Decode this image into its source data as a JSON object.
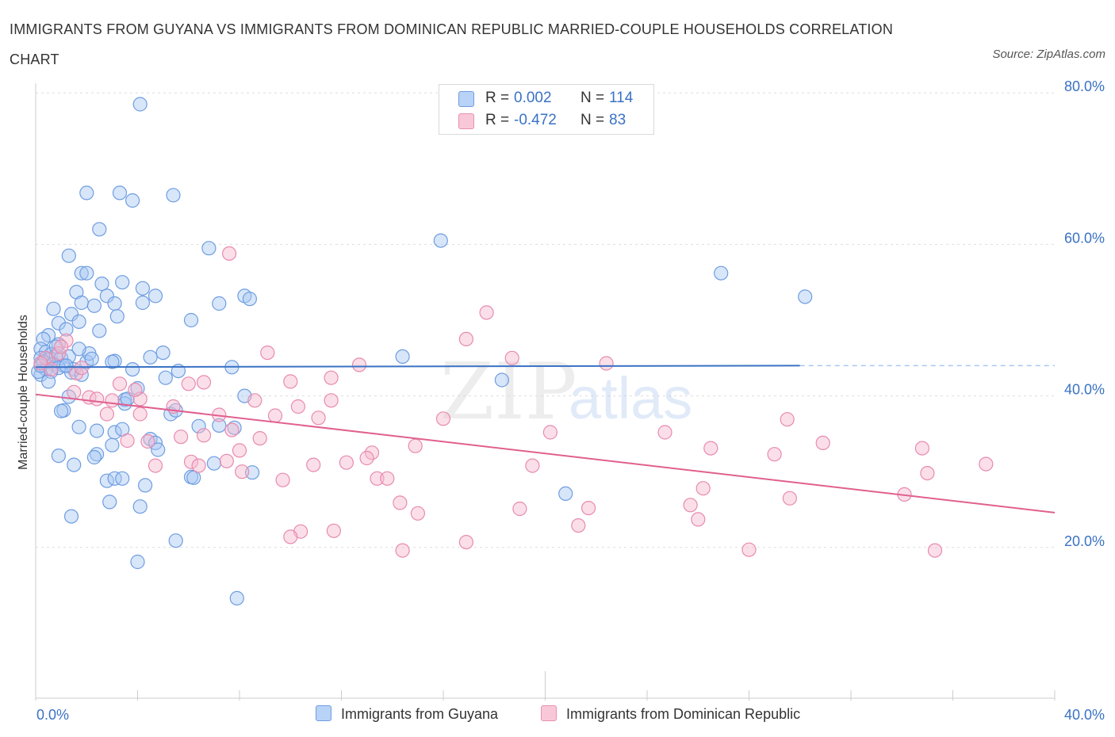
{
  "title": "IMMIGRANTS FROM GUYANA VS IMMIGRANTS FROM DOMINICAN REPUBLIC MARRIED-COUPLE HOUSEHOLDS CORRELATION CHART",
  "source": "Source: ZipAtlas.com",
  "watermark": {
    "zip": "ZIP",
    "atlas": "atlas"
  },
  "legend": {
    "r_label": "R =",
    "n_label": "N =",
    "guyana": {
      "r": "0.002",
      "n": "114"
    },
    "dominican": {
      "r": "-0.472",
      "n": "83"
    }
  },
  "colors": {
    "blue": "#3a72c4",
    "blue_fill": "#a8c8f5",
    "pink": "#e0608e",
    "pink_fill": "#f6b9cd",
    "grid": "#dddddd"
  },
  "chart_data": {
    "type": "scatter",
    "title": "IMMIGRANTS FROM GUYANA VS IMMIGRANTS FROM DOMINICAN REPUBLIC MARRIED-COUPLE HOUSEHOLDS CORRELATION CHART",
    "xlabel": "",
    "ylabel": "Married-couple Households",
    "xlim": [
      0,
      40
    ],
    "ylim": [
      0,
      82
    ],
    "x_tick_labels": [
      "0.0%",
      "40.0%"
    ],
    "y_tick_values": [
      20,
      40,
      60,
      80
    ],
    "y_tick_labels": [
      "20.0%",
      "40.0%",
      "60.0%",
      "80.0%"
    ],
    "grid": true,
    "legend_position": "top-center",
    "series": [
      {
        "name": "Immigrants from Guyana",
        "r": 0.002,
        "n": 114,
        "trend": {
          "x0": 0,
          "y0": 43.8,
          "x1": 30,
          "y1": 44.0,
          "dashed_to_x": 40
        },
        "points": [
          [
            4.1,
            78.5
          ],
          [
            2.0,
            66.8
          ],
          [
            3.3,
            66.8
          ],
          [
            3.8,
            65.8
          ],
          [
            5.4,
            66.5
          ],
          [
            2.5,
            62.0
          ],
          [
            15.9,
            60.5
          ],
          [
            6.8,
            59.5
          ],
          [
            1.3,
            58.5
          ],
          [
            1.8,
            56.2
          ],
          [
            2.0,
            56.2
          ],
          [
            3.4,
            55.0
          ],
          [
            2.6,
            54.8
          ],
          [
            4.2,
            54.2
          ],
          [
            1.6,
            53.7
          ],
          [
            2.8,
            53.2
          ],
          [
            4.7,
            53.2
          ],
          [
            8.2,
            53.2
          ],
          [
            8.4,
            52.8
          ],
          [
            4.2,
            52.3
          ],
          [
            1.8,
            52.3
          ],
          [
            3.1,
            52.2
          ],
          [
            7.2,
            52.2
          ],
          [
            2.3,
            51.9
          ],
          [
            0.7,
            51.5
          ],
          [
            3.2,
            50.5
          ],
          [
            1.4,
            50.8
          ],
          [
            6.1,
            50.0
          ],
          [
            0.9,
            49.6
          ],
          [
            1.7,
            49.8
          ],
          [
            2.5,
            48.6
          ],
          [
            1.2,
            48.8
          ],
          [
            0.5,
            48.0
          ],
          [
            0.3,
            47.5
          ],
          [
            0.9,
            46.8
          ],
          [
            0.2,
            46.2
          ],
          [
            0.4,
            45.8
          ],
          [
            0.6,
            45.5
          ],
          [
            0.2,
            45.0
          ],
          [
            0.5,
            44.8
          ],
          [
            0.8,
            45.3
          ],
          [
            1.0,
            45.0
          ],
          [
            1.3,
            45.2
          ],
          [
            0.3,
            44.5
          ],
          [
            0.7,
            44.2
          ],
          [
            1.1,
            44.0
          ],
          [
            0.9,
            43.7
          ],
          [
            0.4,
            43.5
          ],
          [
            0.6,
            43.2
          ],
          [
            1.5,
            43.5
          ],
          [
            2.0,
            44.5
          ],
          [
            2.1,
            45.6
          ],
          [
            3.1,
            44.6
          ],
          [
            4.5,
            45.1
          ],
          [
            5.0,
            45.7
          ],
          [
            14.4,
            45.2
          ],
          [
            3.8,
            43.5
          ],
          [
            5.6,
            43.3
          ],
          [
            7.7,
            43.8
          ],
          [
            1.4,
            43.1
          ],
          [
            1.8,
            42.8
          ],
          [
            5.1,
            42.4
          ],
          [
            0.2,
            42.8
          ],
          [
            0.1,
            43.2
          ],
          [
            4.0,
            41.0
          ],
          [
            1.3,
            39.9
          ],
          [
            8.2,
            40.0
          ],
          [
            3.5,
            39.5
          ],
          [
            3.5,
            39.0
          ],
          [
            1.1,
            38.1
          ],
          [
            1.0,
            38.0
          ],
          [
            5.3,
            37.6
          ],
          [
            5.5,
            38.1
          ],
          [
            6.4,
            36.0
          ],
          [
            7.2,
            36.1
          ],
          [
            7.8,
            35.8
          ],
          [
            1.7,
            35.9
          ],
          [
            2.4,
            35.4
          ],
          [
            3.1,
            35.2
          ],
          [
            3.4,
            35.6
          ],
          [
            4.5,
            34.3
          ],
          [
            4.7,
            33.8
          ],
          [
            3.0,
            33.5
          ],
          [
            2.4,
            32.3
          ],
          [
            4.8,
            32.9
          ],
          [
            0.9,
            32.1
          ],
          [
            2.3,
            31.9
          ],
          [
            1.5,
            30.9
          ],
          [
            6.1,
            29.3
          ],
          [
            6.2,
            29.2
          ],
          [
            8.5,
            29.9
          ],
          [
            2.8,
            28.8
          ],
          [
            3.1,
            29.1
          ],
          [
            3.4,
            29.1
          ],
          [
            4.3,
            28.2
          ],
          [
            7.0,
            31.1
          ],
          [
            18.3,
            42.1
          ],
          [
            2.9,
            26.0
          ],
          [
            4.1,
            25.4
          ],
          [
            1.4,
            24.1
          ],
          [
            5.5,
            20.9
          ],
          [
            4.0,
            18.1
          ],
          [
            7.9,
            13.3
          ],
          [
            26.9,
            56.2
          ],
          [
            30.2,
            53.1
          ],
          [
            20.8,
            27.1
          ],
          [
            1.2,
            44.0
          ],
          [
            0.8,
            46.5
          ],
          [
            2.2,
            44.9
          ],
          [
            0.2,
            44.0
          ],
          [
            1.7,
            46.2
          ],
          [
            0.5,
            41.9
          ],
          [
            3.0,
            44.5
          ],
          [
            3.6,
            39.6
          ]
        ]
      },
      {
        "name": "Immigrants from Dominican Republic",
        "r": -0.472,
        "n": 83,
        "trend": {
          "x0": 0,
          "y0": 40.2,
          "x1": 40,
          "y1": 24.6
        },
        "points": [
          [
            7.6,
            58.8
          ],
          [
            17.7,
            51.0
          ],
          [
            16.9,
            47.5
          ],
          [
            9.1,
            45.7
          ],
          [
            18.7,
            45.0
          ],
          [
            22.4,
            44.3
          ],
          [
            12.7,
            44.1
          ],
          [
            1.2,
            47.3
          ],
          [
            0.9,
            45.6
          ],
          [
            1.6,
            43.0
          ],
          [
            0.4,
            45.0
          ],
          [
            11.6,
            42.4
          ],
          [
            10.0,
            41.9
          ],
          [
            6.0,
            41.6
          ],
          [
            6.6,
            41.8
          ],
          [
            3.3,
            41.6
          ],
          [
            1.5,
            40.5
          ],
          [
            2.1,
            39.8
          ],
          [
            2.4,
            39.6
          ],
          [
            3.0,
            39.4
          ],
          [
            4.1,
            39.6
          ],
          [
            8.6,
            39.4
          ],
          [
            11.6,
            39.4
          ],
          [
            10.3,
            38.6
          ],
          [
            5.4,
            38.6
          ],
          [
            2.8,
            37.6
          ],
          [
            4.1,
            37.6
          ],
          [
            7.2,
            37.5
          ],
          [
            9.4,
            37.4
          ],
          [
            11.1,
            37.1
          ],
          [
            16.0,
            37.0
          ],
          [
            29.5,
            36.9
          ],
          [
            20.2,
            35.2
          ],
          [
            24.7,
            35.2
          ],
          [
            7.7,
            35.5
          ],
          [
            5.7,
            34.6
          ],
          [
            6.6,
            34.8
          ],
          [
            8.8,
            34.4
          ],
          [
            3.6,
            34.1
          ],
          [
            4.4,
            34.0
          ],
          [
            14.9,
            33.4
          ],
          [
            26.5,
            33.1
          ],
          [
            30.9,
            33.8
          ],
          [
            34.8,
            33.1
          ],
          [
            13.2,
            32.5
          ],
          [
            13.0,
            31.8
          ],
          [
            29.0,
            32.3
          ],
          [
            6.1,
            31.3
          ],
          [
            7.5,
            31.4
          ],
          [
            6.4,
            30.8
          ],
          [
            12.2,
            31.2
          ],
          [
            4.7,
            30.8
          ],
          [
            10.9,
            30.9
          ],
          [
            19.5,
            30.8
          ],
          [
            37.3,
            31.0
          ],
          [
            8.0,
            32.8
          ],
          [
            8.1,
            30.0
          ],
          [
            9.7,
            28.9
          ],
          [
            13.4,
            29.1
          ],
          [
            13.8,
            29.1
          ],
          [
            35.0,
            29.8
          ],
          [
            26.2,
            27.8
          ],
          [
            29.6,
            26.5
          ],
          [
            34.1,
            27.0
          ],
          [
            14.3,
            25.9
          ],
          [
            15.0,
            24.5
          ],
          [
            19.0,
            25.1
          ],
          [
            21.7,
            25.2
          ],
          [
            25.7,
            25.6
          ],
          [
            26.0,
            23.7
          ],
          [
            21.3,
            22.9
          ],
          [
            11.7,
            22.2
          ],
          [
            10.4,
            22.1
          ],
          [
            10.0,
            21.4
          ],
          [
            16.9,
            20.7
          ],
          [
            14.4,
            19.6
          ],
          [
            28.0,
            19.7
          ],
          [
            35.3,
            19.6
          ],
          [
            0.2,
            44.3
          ],
          [
            0.6,
            43.5
          ],
          [
            1.8,
            43.7
          ],
          [
            3.9,
            40.8
          ],
          [
            1.0,
            46.5
          ]
        ]
      }
    ]
  }
}
